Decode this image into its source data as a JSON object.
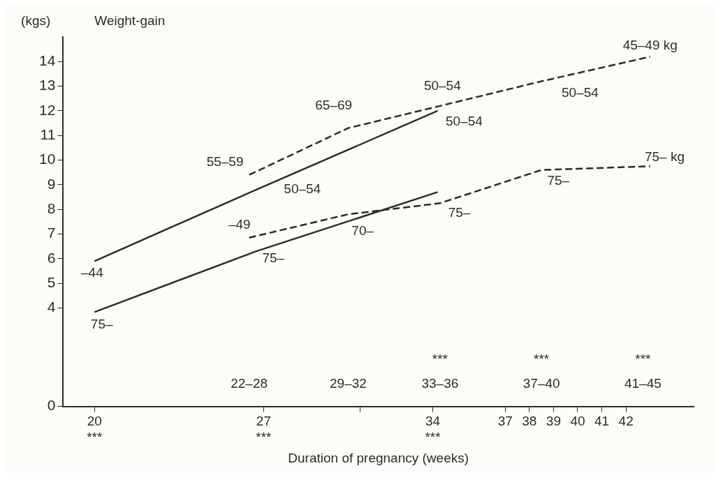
{
  "chart_data": {
    "type": "line",
    "title": "Weight-gain",
    "ylabel": "(kgs)",
    "xlabel": "Duration of pregnancy (weeks)",
    "series": [
      {
        "type": "line",
        "line_style": "solid",
        "color": "#2b2b2b",
        "x": [
          20,
          26.7,
          34.2
        ],
        "values": [
          5.9,
          8.8,
          12.0
        ]
      },
      {
        "type": "line",
        "line_style": "solid",
        "color": "#2b2b2b",
        "x": [
          20,
          26.7,
          34.2
        ],
        "values": [
          3.83,
          6.3,
          8.7
        ]
      },
      {
        "type": "line",
        "line_style": "dashed",
        "color": "#2b2b2b",
        "x": [
          26.4,
          30.5,
          34.3,
          38.5,
          43
        ],
        "values": [
          9.4,
          11.3,
          12.2,
          13.2,
          14.2
        ]
      },
      {
        "type": "line",
        "line_style": "dashed",
        "color": "#2b2b2b",
        "x": [
          26.4,
          30.5,
          34.3,
          38.5,
          43
        ],
        "values": [
          6.85,
          7.8,
          8.25,
          9.6,
          9.75
        ]
      }
    ],
    "xlim": [
      18.7,
      44.8
    ],
    "ylim": [
      0,
      15
    ],
    "xticks": [
      {
        "value": 20,
        "label": "20\n***"
      },
      {
        "value": 27,
        "label": "27\n***"
      },
      {
        "value": 31,
        "label": null
      },
      {
        "value": 34,
        "label": "34\n***"
      },
      37,
      38,
      39,
      40,
      41,
      42
    ],
    "yticks": [
      0,
      4,
      5,
      6,
      7,
      8,
      9,
      10,
      11,
      12,
      13,
      14
    ],
    "grid": false,
    "legend": false,
    "marker": "none",
    "annotations": [
      "55–59",
      "50–54",
      "65–69",
      "–44",
      "75–",
      "–49",
      "75–",
      "70–",
      "75–",
      "50–54",
      "50–54",
      "50–54",
      "45–49 kg",
      "75–",
      "75– kg",
      "22–28",
      "29–32",
      "33–36",
      "37–40",
      "41–45",
      "***",
      "***",
      "***"
    ]
  }
}
